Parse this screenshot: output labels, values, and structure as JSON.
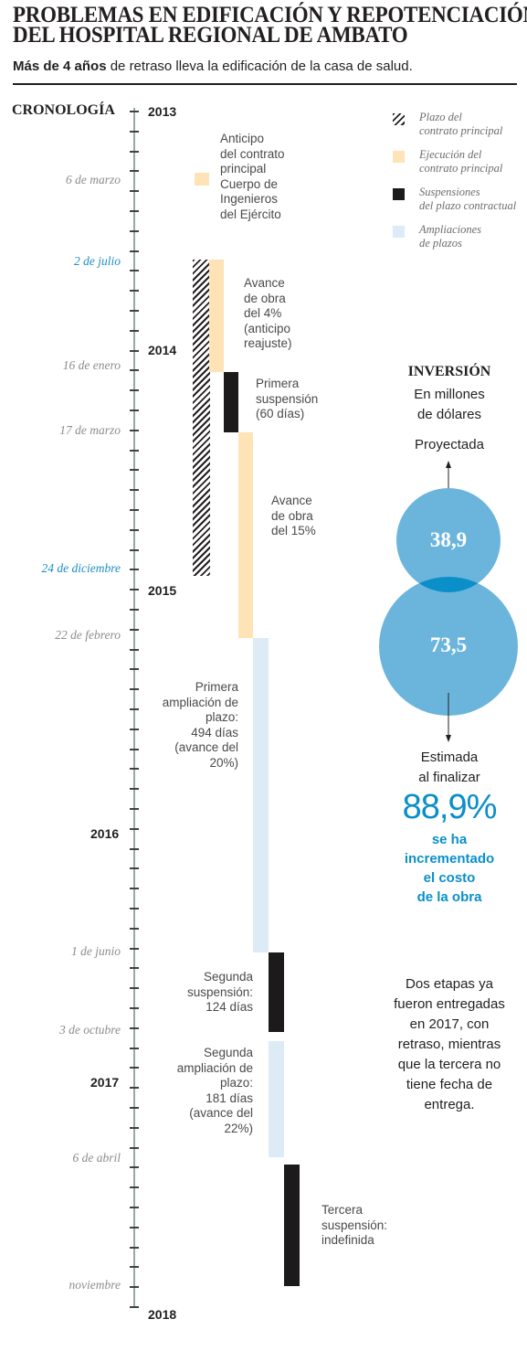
{
  "header": {
    "title_line1": "PROBLEMAS EN EDIFICACIÓN Y REPOTENCIACIÓN",
    "title_line2": "DEL HOSPITAL REGIONAL DE AMBATO",
    "subtitle_bold": "Más de 4 años",
    "subtitle_rest": " de retraso lleva la edificación de la casa de salud."
  },
  "timeline": {
    "label": "CRONOLOGÍA",
    "years": [
      "2013",
      "2014",
      "2015",
      "2016",
      "2017",
      "2018"
    ],
    "dates": [
      "6 de marzo",
      "2 de julio",
      "16 de enero",
      "17 de marzo",
      "24 de diciembre",
      "22 de febrero",
      "1 de junio",
      "3 de octubre",
      "6 de abril",
      "noviembre"
    ],
    "notes": {
      "anticipo": "Anticipo\ndel contrato\nprincipal\nCuerpo de\nIngenieros\ndel Ejército",
      "avance4": "Avance\nde obra\ndel 4%\n(anticipo\nreajuste)",
      "susp1": "Primera\nsuspensión\n(60 días)",
      "avance15": "Avance\nde obra\ndel 15%",
      "ampl1": "Primera\nampliación de\nplazo:\n494 días\n(avance del\n20%)",
      "susp2": "Segunda\nsuspensión:\n124 días",
      "ampl2": "Segunda\nampliación de\nplazo:\n181 días\n(avance del\n22%)",
      "susp3": "Tercera\nsuspensión:\nindefinida"
    }
  },
  "legend": {
    "plazo": "Plazo del\ncontrato principal",
    "ejecucion": "Ejecución del\ncontrato principal",
    "suspensiones": "Suspensiones\ndel plazo contractual",
    "ampliaciones": "Ampliaciones\nde plazos"
  },
  "investment": {
    "title": "INVERSIÓN",
    "unit": "En millones\nde dólares",
    "projected_label": "Proyectada",
    "projected_value": "38,9",
    "estimated_value": "73,5",
    "estimated_label": "Estimada\nal finalizar",
    "percent": "88,9%",
    "percent_text": "se ha\nincrementado\nel costo\nde la obra"
  },
  "footer_note": "Dos etapas ya\nfueron entregadas\nen 2017, con\nretraso, mientras\nque la tercera no\ntiene fecha de\nentrega.",
  "colors": {
    "ejecucion": "#fde3b6",
    "suspension": "#1c1a1b",
    "ampliacion": "#dcebf6",
    "bubble": "#6bb5dc",
    "bubble_overlap": "#0a8fc9",
    "accent_blue": "#0a8fc9",
    "date_blue": "#1b8fc2"
  }
}
